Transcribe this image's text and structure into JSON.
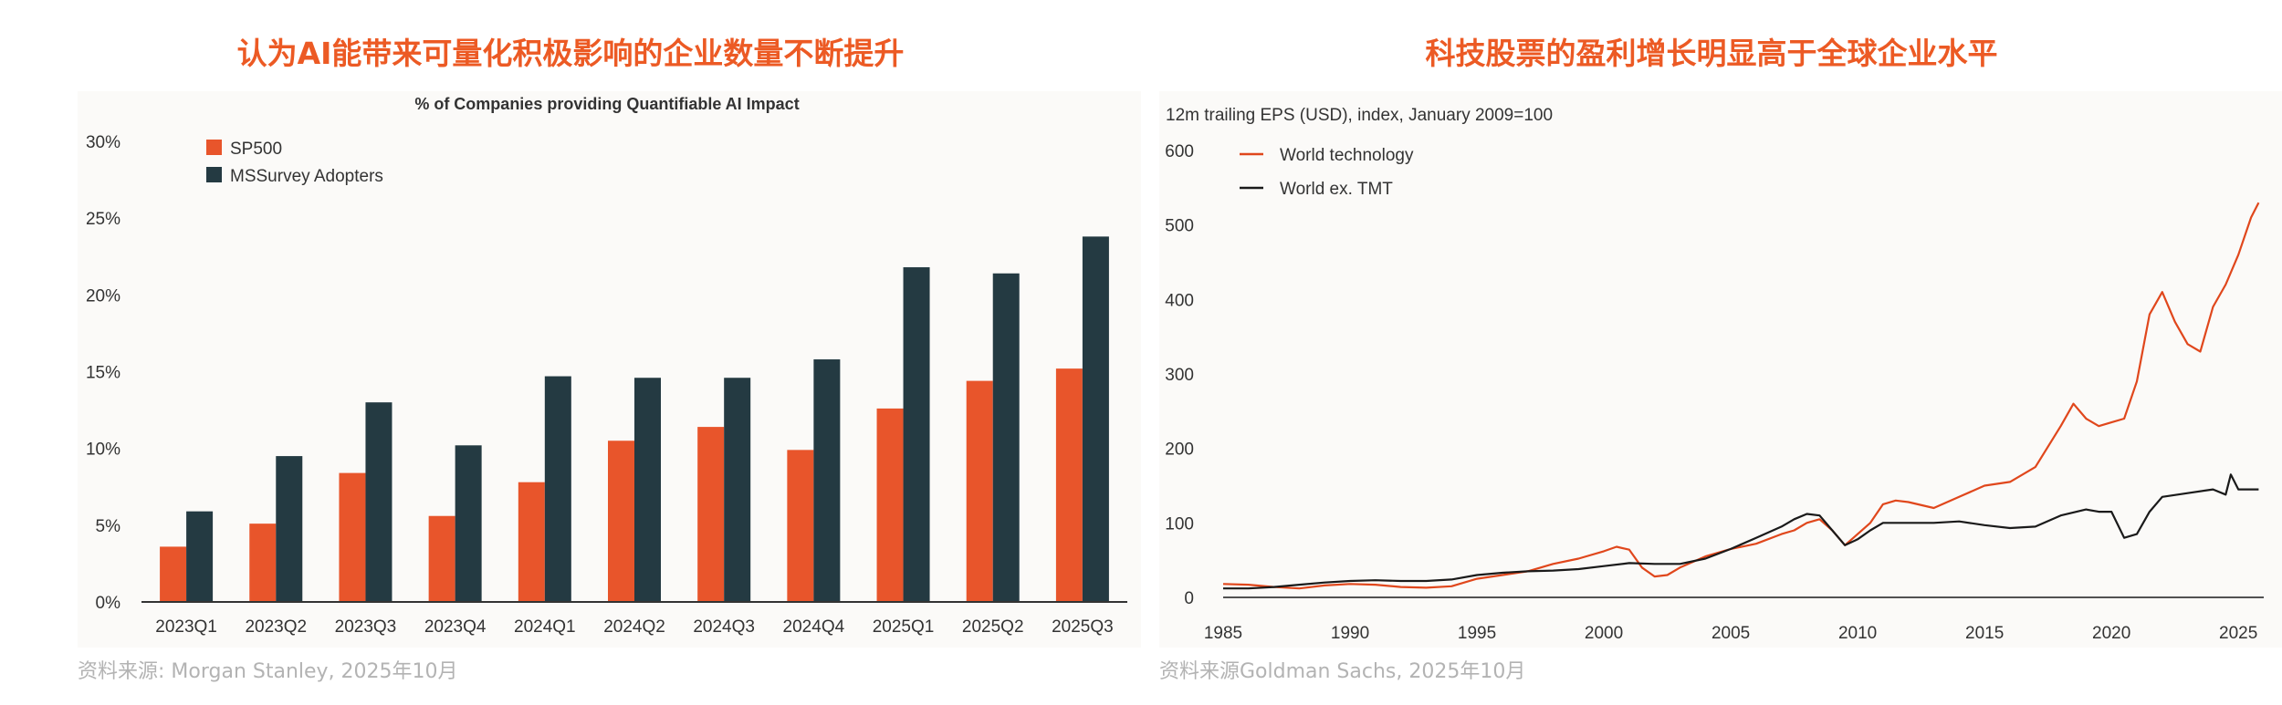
{
  "chart_data": [
    {
      "type": "bar",
      "title": "认为AI能带来可量化积极影响的企业数量不断提升",
      "subtitle": "% of Companies providing Quantifiable AI Impact",
      "source": "资料来源: Morgan Stanley, 2025年10月",
      "categories": [
        "2023Q1",
        "2023Q2",
        "2023Q3",
        "2023Q4",
        "2024Q1",
        "2024Q2",
        "2024Q3",
        "2024Q4",
        "2025Q1",
        "2025Q2",
        "2025Q3"
      ],
      "series": [
        {
          "name": "SP500",
          "color": "#e8552b",
          "values": [
            3.6,
            5.1,
            8.4,
            5.6,
            7.8,
            10.5,
            11.4,
            9.9,
            12.6,
            14.4,
            15.2
          ]
        },
        {
          "name": "MSSurvey Adopters",
          "color": "#243a42",
          "values": [
            5.9,
            9.5,
            13.0,
            10.2,
            14.7,
            14.6,
            14.6,
            15.8,
            21.8,
            21.4,
            23.8
          ]
        }
      ],
      "ylim": [
        0,
        30
      ],
      "yticks": [
        0,
        5,
        10,
        15,
        20,
        25,
        30
      ],
      "ytick_labels": [
        "0%",
        "5%",
        "10%",
        "15%",
        "20%",
        "25%",
        "30%"
      ],
      "legend_position": "top-left",
      "grid": false
    },
    {
      "type": "line",
      "title": "科技股票的盈利增长明显高于全球企业水平",
      "subtitle": "12m trailing EPS (USD), index, January 2009=100",
      "source": "资料来源Goldman Sachs, 2025年10月",
      "xlim": [
        1985,
        2026
      ],
      "ylim": [
        0,
        600
      ],
      "xticks": [
        1985,
        1990,
        1995,
        2000,
        2005,
        2010,
        2015,
        2020,
        2025
      ],
      "yticks": [
        0,
        100,
        200,
        300,
        400,
        500,
        600
      ],
      "legend_position": "top-left",
      "grid": false,
      "series": [
        {
          "name": "World technology",
          "color": "#e0471c",
          "x": [
            1985,
            1986,
            1987,
            1988,
            1989,
            1990,
            1991,
            1992,
            1993,
            1994,
            1995,
            1996,
            1997,
            1998,
            1999,
            2000,
            2000.5,
            2001,
            2001.5,
            2002,
            2002.5,
            2003,
            2004,
            2005,
            2006,
            2007,
            2007.5,
            2008,
            2008.5,
            2009,
            2009.5,
            2010,
            2010.5,
            2011,
            2011.5,
            2012,
            2013,
            2014,
            2015,
            2016,
            2017,
            2018,
            2018.5,
            2019,
            2019.5,
            2020,
            2020.5,
            2021,
            2021.5,
            2022,
            2022.5,
            2023,
            2023.5,
            2024,
            2024.5,
            2025,
            2025.5,
            2025.8
          ],
          "y": [
            18,
            17,
            14,
            12,
            16,
            18,
            17,
            14,
            13,
            15,
            25,
            30,
            35,
            45,
            52,
            62,
            68,
            64,
            40,
            28,
            30,
            40,
            55,
            65,
            72,
            85,
            90,
            100,
            105,
            90,
            70,
            85,
            100,
            125,
            130,
            128,
            120,
            135,
            150,
            155,
            175,
            230,
            260,
            240,
            230,
            235,
            240,
            290,
            380,
            410,
            370,
            340,
            330,
            390,
            420,
            460,
            510,
            530
          ]
        },
        {
          "name": "World ex. TMT",
          "color": "#1a1a1a",
          "x": [
            1985,
            1986,
            1987,
            1988,
            1989,
            1990,
            1991,
            1992,
            1993,
            1994,
            1995,
            1996,
            1997,
            1998,
            1999,
            2000,
            2001,
            2002,
            2003,
            2004,
            2005,
            2006,
            2007,
            2007.5,
            2008,
            2008.5,
            2009,
            2009.5,
            2010,
            2010.5,
            2011,
            2012,
            2013,
            2014,
            2015,
            2016,
            2017,
            2018,
            2019,
            2019.5,
            2020,
            2020.5,
            2021,
            2021.5,
            2022,
            2023,
            2024,
            2024.5,
            2024.7,
            2025,
            2025.8
          ],
          "y": [
            12,
            12,
            14,
            17,
            20,
            22,
            23,
            22,
            22,
            24,
            30,
            33,
            35,
            36,
            38,
            42,
            46,
            45,
            45,
            52,
            65,
            80,
            95,
            105,
            112,
            110,
            90,
            70,
            78,
            90,
            100,
            100,
            100,
            102,
            97,
            93,
            95,
            110,
            118,
            115,
            115,
            80,
            85,
            115,
            135,
            140,
            145,
            138,
            165,
            145,
            145
          ]
        }
      ]
    }
  ]
}
